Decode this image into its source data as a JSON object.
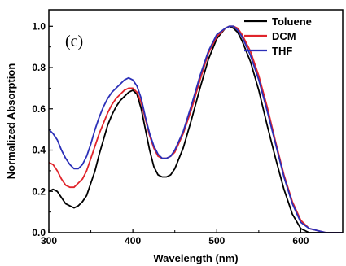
{
  "chart_data": {
    "type": "line",
    "panel_label": "(c)",
    "xlabel": "Wavelength (nm)",
    "ylabel": "Normalized Absorption",
    "xlim": [
      300,
      650
    ],
    "ylim": [
      0,
      1.08
    ],
    "x_ticks": [
      300,
      400,
      500,
      600
    ],
    "y_ticks": [
      0.0,
      0.2,
      0.4,
      0.6,
      0.8,
      1.0
    ],
    "x_tick_labels": [
      "300",
      "400",
      "500",
      "600"
    ],
    "y_tick_labels": [
      "0.0",
      "0.2",
      "0.4",
      "0.6",
      "0.8",
      "1.0"
    ],
    "legend_position": "top-right",
    "series": [
      {
        "name": "Toluene",
        "color": "#000000",
        "x": [
          300,
          305,
          310,
          315,
          320,
          325,
          330,
          335,
          340,
          345,
          350,
          355,
          360,
          365,
          370,
          375,
          380,
          385,
          390,
          395,
          400,
          405,
          410,
          415,
          420,
          425,
          430,
          435,
          440,
          445,
          450,
          460,
          470,
          480,
          490,
          500,
          510,
          515,
          520,
          525,
          530,
          540,
          550,
          560,
          570,
          580,
          590,
          600,
          610,
          620,
          630,
          640,
          650
        ],
        "y": [
          0.2,
          0.21,
          0.2,
          0.17,
          0.14,
          0.13,
          0.12,
          0.13,
          0.15,
          0.18,
          0.24,
          0.3,
          0.38,
          0.45,
          0.52,
          0.57,
          0.61,
          0.64,
          0.66,
          0.68,
          0.69,
          0.67,
          0.6,
          0.5,
          0.4,
          0.32,
          0.28,
          0.27,
          0.27,
          0.28,
          0.31,
          0.41,
          0.55,
          0.7,
          0.84,
          0.94,
          0.99,
          1.0,
          0.99,
          0.97,
          0.93,
          0.83,
          0.69,
          0.52,
          0.36,
          0.21,
          0.09,
          0.02,
          0.0,
          0.0,
          0.0,
          0.0,
          0.0
        ]
      },
      {
        "name": "DCM",
        "color": "#e0242b",
        "x": [
          300,
          305,
          310,
          315,
          320,
          325,
          330,
          335,
          340,
          345,
          350,
          355,
          360,
          365,
          370,
          375,
          380,
          385,
          390,
          395,
          400,
          405,
          410,
          415,
          420,
          425,
          430,
          435,
          440,
          445,
          450,
          460,
          470,
          480,
          490,
          500,
          510,
          515,
          520,
          525,
          530,
          540,
          550,
          560,
          570,
          580,
          590,
          600,
          610,
          620,
          630,
          640,
          650
        ],
        "y": [
          0.34,
          0.33,
          0.3,
          0.26,
          0.23,
          0.22,
          0.22,
          0.24,
          0.26,
          0.3,
          0.36,
          0.42,
          0.48,
          0.53,
          0.58,
          0.62,
          0.65,
          0.67,
          0.69,
          0.7,
          0.7,
          0.68,
          0.63,
          0.55,
          0.47,
          0.41,
          0.37,
          0.36,
          0.36,
          0.37,
          0.39,
          0.48,
          0.6,
          0.74,
          0.87,
          0.95,
          0.99,
          1.0,
          1.0,
          0.99,
          0.96,
          0.88,
          0.76,
          0.61,
          0.44,
          0.28,
          0.15,
          0.06,
          0.02,
          0.01,
          0.0,
          0.0,
          0.0
        ]
      },
      {
        "name": "THF",
        "color": "#2b2fb8",
        "x": [
          300,
          305,
          310,
          315,
          320,
          325,
          330,
          335,
          340,
          345,
          350,
          355,
          360,
          365,
          370,
          375,
          380,
          385,
          390,
          395,
          400,
          405,
          410,
          415,
          420,
          425,
          430,
          435,
          440,
          445,
          450,
          460,
          470,
          480,
          490,
          500,
          510,
          515,
          520,
          525,
          530,
          540,
          550,
          560,
          570,
          580,
          590,
          600,
          610,
          620,
          630,
          640,
          650
        ],
        "y": [
          0.5,
          0.48,
          0.45,
          0.4,
          0.36,
          0.33,
          0.31,
          0.31,
          0.33,
          0.37,
          0.43,
          0.5,
          0.56,
          0.61,
          0.65,
          0.68,
          0.7,
          0.72,
          0.74,
          0.75,
          0.74,
          0.71,
          0.65,
          0.56,
          0.48,
          0.42,
          0.38,
          0.36,
          0.36,
          0.37,
          0.4,
          0.49,
          0.62,
          0.76,
          0.88,
          0.96,
          0.99,
          1.0,
          1.0,
          0.98,
          0.95,
          0.86,
          0.74,
          0.59,
          0.43,
          0.27,
          0.14,
          0.05,
          0.02,
          0.01,
          0.0,
          0.0,
          0.0
        ]
      }
    ]
  }
}
